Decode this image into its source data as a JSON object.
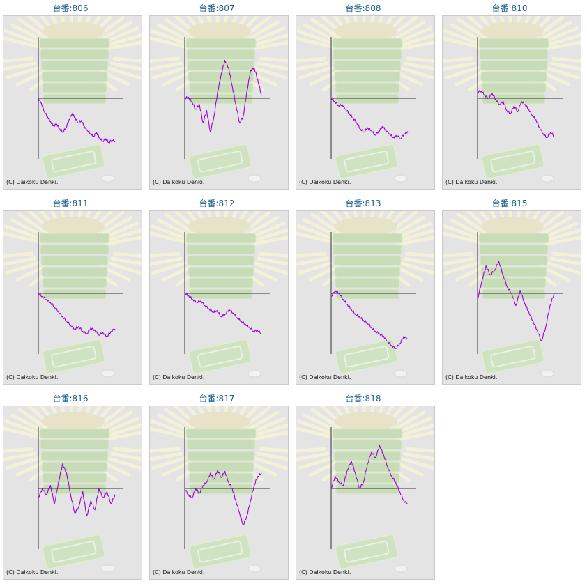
{
  "colors": {
    "title": "#1a5f8a",
    "line": "#9a00d8",
    "panel": "#e4e4e4",
    "axis": "#333333"
  },
  "copyright": "(C) Daikoku Denki.",
  "charts": [
    {
      "title": "台番:806",
      "chart_data": {
        "type": "line",
        "values": [
          0,
          -8,
          -22,
          -30,
          -38,
          -45,
          -42,
          -50,
          -55,
          -48,
          -35,
          -25,
          -32,
          -40,
          -36,
          -46,
          -52,
          -58,
          -62,
          -56,
          -65,
          -70,
          -66,
          -72,
          -68,
          -70
        ]
      }
    },
    {
      "title": "台番:807",
      "chart_data": {
        "type": "line",
        "values": [
          0,
          2,
          -6,
          -18,
          -10,
          -40,
          -20,
          -55,
          -30,
          10,
          40,
          62,
          50,
          20,
          -10,
          -40,
          -30,
          10,
          45,
          50,
          30,
          5
        ]
      }
    },
    {
      "title": "台番:808",
      "chart_data": {
        "type": "line",
        "values": [
          0,
          -5,
          -12,
          -10,
          -18,
          -25,
          -32,
          -40,
          -50,
          -55,
          -48,
          -52,
          -60,
          -54,
          -46,
          -52,
          -58,
          -64,
          -60,
          -66,
          -58,
          -54
        ]
      }
    },
    {
      "title": "台番:810",
      "chart_data": {
        "type": "line",
        "values": [
          10,
          12,
          5,
          0,
          8,
          -2,
          -10,
          -5,
          -20,
          -25,
          -12,
          -22,
          -5,
          -10,
          -18,
          -28,
          -35,
          -48,
          -58,
          -64,
          -55,
          -62
        ]
      }
    },
    {
      "title": "台番:811",
      "chart_data": {
        "type": "line",
        "values": [
          0,
          -5,
          -10,
          -15,
          -22,
          -30,
          -38,
          -45,
          -52,
          -58,
          -54,
          -62,
          -66,
          -56,
          -60,
          -68,
          -64,
          -70,
          -62,
          -58
        ]
      }
    },
    {
      "title": "台番:812",
      "chart_data": {
        "type": "line",
        "values": [
          0,
          -4,
          -10,
          -14,
          -12,
          -20,
          -25,
          -30,
          -28,
          -38,
          -34,
          -26,
          -32,
          -40,
          -45,
          -50,
          -55,
          -62,
          -60,
          -66
        ]
      }
    },
    {
      "title": "台番:813",
      "chart_data": {
        "type": "line",
        "values": [
          -5,
          5,
          0,
          -10,
          -18,
          -26,
          -34,
          -38,
          -44,
          -48,
          -56,
          -62,
          -66,
          -70,
          -78,
          -85,
          -90,
          -82,
          -70,
          -74
        ]
      }
    },
    {
      "title": "台番:815",
      "chart_data": {
        "type": "line",
        "values": [
          -10,
          20,
          45,
          30,
          38,
          52,
          30,
          10,
          0,
          -20,
          5,
          -15,
          -30,
          -45,
          -60,
          -78,
          -55,
          -20,
          0
        ]
      }
    },
    {
      "title": "台番:816",
      "chart_data": {
        "type": "line",
        "values": [
          -15,
          0,
          -10,
          5,
          -25,
          10,
          40,
          25,
          -10,
          -40,
          -30,
          -5,
          -45,
          -20,
          -35,
          0,
          -15,
          -5,
          -25,
          -10
        ]
      }
    },
    {
      "title": "台番:817",
      "chart_data": {
        "type": "line",
        "values": [
          0,
          -10,
          -15,
          0,
          -8,
          5,
          10,
          25,
          15,
          30,
          18,
          28,
          10,
          0,
          -20,
          -40,
          -60,
          -45,
          -20,
          5,
          20,
          25
        ]
      }
    },
    {
      "title": "台番:818",
      "chart_data": {
        "type": "line",
        "values": [
          0,
          20,
          10,
          5,
          30,
          45,
          25,
          0,
          10,
          40,
          60,
          50,
          70,
          55,
          35,
          20,
          10,
          -5,
          -20,
          -25
        ]
      }
    }
  ]
}
